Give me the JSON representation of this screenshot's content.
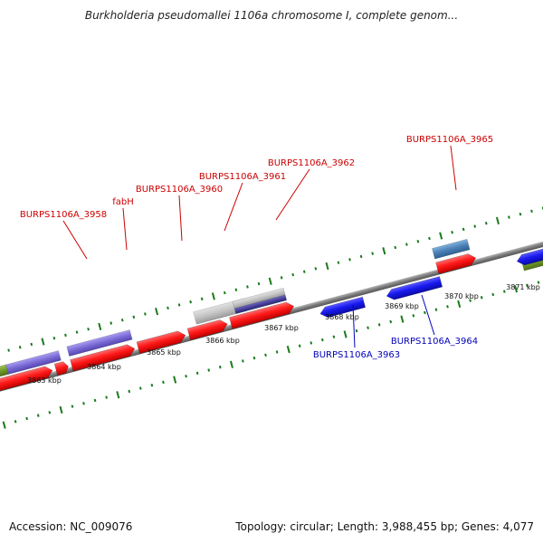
{
  "title": "Burkholderia pseudomallei 1106a chromosome I, complete genom...",
  "footer": {
    "accession": "Accession: NC_009076",
    "summary": "Topology: circular; Length: 3,988,455 bp; Genes: 4,077"
  },
  "colors": {
    "backbone": "#8c8c8c",
    "forward_gene": "#ff0000",
    "reverse_gene": "#1414e6",
    "forward_label": "#cc0000",
    "reverse_label": "#0000bb",
    "tick": "#1a7a1a",
    "purple_feature": "#7a6ad6",
    "olive_feature": "#6f9a2a",
    "grey_feature": "#c4c4c4",
    "steelblue_feature": "#4a7fb5"
  },
  "scale_labels": [
    "3863 kbp",
    "3864 kbp",
    "3865 kbp",
    "3866 kbp",
    "3867 kbp",
    "3868 kbp",
    "3869 kbp",
    "3870 kbp",
    "3871 kbp"
  ],
  "gene_labels": {
    "g3958": "BURPS1106A_3958",
    "fabH": "fabH",
    "g3960": "BURPS1106A_3960",
    "g3961": "BURPS1106A_3961",
    "g3962": "BURPS1106A_3962",
    "g3963": "BURPS1106A_3963",
    "g3964": "BURPS1106A_3964",
    "g3965": "BURPS1106A_3965"
  }
}
